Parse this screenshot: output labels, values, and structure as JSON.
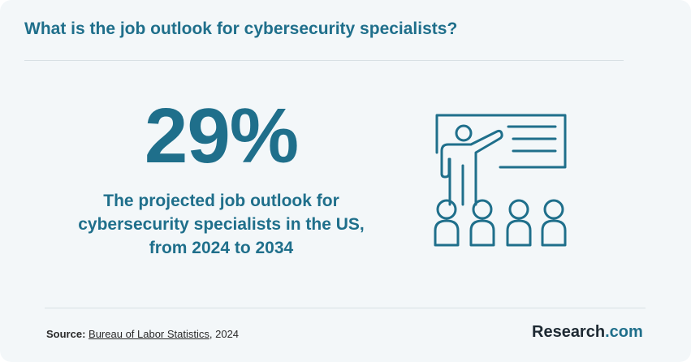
{
  "header": {
    "title": "What is the job outlook for cybersecurity specialists?"
  },
  "stat": {
    "value": "29%",
    "description_lines": [
      "The projected job outlook for",
      "cybersecurity specialists in the US,",
      "from 2024 to 2034"
    ]
  },
  "illustration": {
    "icon": "teacher-presentation-icon"
  },
  "footer": {
    "source_label": "Source:",
    "source_link": "Bureau of Labor Statistics",
    "source_suffix": ", 2024",
    "logo_main": "Research",
    "logo_suffix": ".com"
  },
  "colors": {
    "accent": "#1f6f8b",
    "background": "#f3f7f9",
    "divider": "#d8e0e4"
  }
}
